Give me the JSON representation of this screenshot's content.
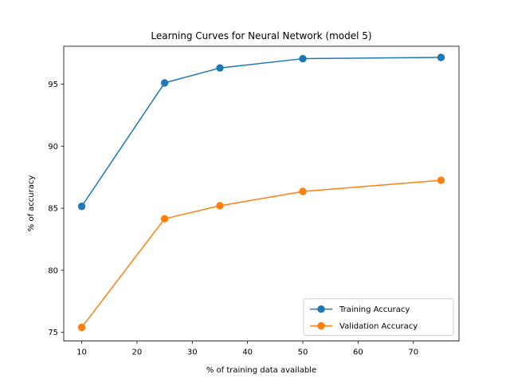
{
  "chart_data": {
    "type": "line",
    "title": "Learning Curves for Neural Network (model 5)",
    "xlabel": "% of training data available",
    "ylabel": "% of accuracy",
    "x": [
      10,
      25,
      35,
      50,
      75
    ],
    "xlim": [
      6.75,
      78.25
    ],
    "ylim": [
      74.3,
      98.05
    ],
    "xticks": [
      10,
      20,
      30,
      40,
      50,
      60,
      70
    ],
    "yticks": [
      75,
      80,
      85,
      90,
      95
    ],
    "grid": false,
    "legend_position": "lower right",
    "series": [
      {
        "name": "Training Accuracy",
        "color": "#1f77b4",
        "marker": "circle",
        "values": [
          85.15,
          95.1,
          96.3,
          97.05,
          97.15
        ]
      },
      {
        "name": "Validation Accuracy",
        "color": "#ff7f0e",
        "marker": "circle",
        "values": [
          75.4,
          84.15,
          85.2,
          86.35,
          87.25
        ]
      }
    ]
  }
}
